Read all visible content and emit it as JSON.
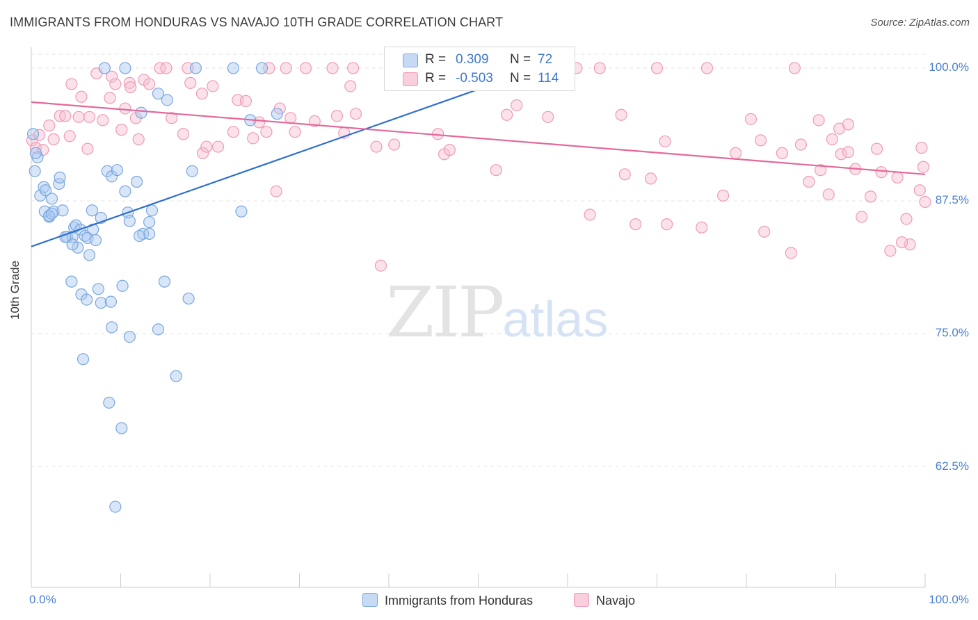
{
  "title": "IMMIGRANTS FROM HONDURAS VS NAVAJO 10TH GRADE CORRELATION CHART",
  "source": "Source: ZipAtlas.com",
  "watermark": {
    "main": "ZIP",
    "sub": "atlas"
  },
  "colors": {
    "blue": "#7aa7e0",
    "blue_fill": "#a9c7ef",
    "blue_line": "#2e6fcf",
    "pink": "#ef9ab6",
    "pink_fill": "#f6bfd1",
    "pink_line": "#e5679a",
    "tick_text": "#4a7fd0"
  },
  "stats": [
    {
      "r_label": "R =",
      "r_value": "0.309",
      "n_label": "N =",
      "n_value": "72"
    },
    {
      "r_label": "R =",
      "r_value": "-0.503",
      "n_label": "N =",
      "n_value": "114"
    }
  ],
  "chart_data": {
    "type": "scatter",
    "title": "IMMIGRANTS FROM HONDURAS VS NAVAJO 10TH GRADE CORRELATION CHART",
    "xlabel": "",
    "ylabel": "10th Grade",
    "xlim": [
      0,
      100
    ],
    "ylim": [
      50,
      101
    ],
    "x_tick_labels": [
      "0.0%",
      "100.0%"
    ],
    "y_ticks": [
      62.5,
      75.0,
      87.5,
      100.0
    ],
    "y_tick_labels": [
      "62.5%",
      "75.0%",
      "87.5%",
      "100.0%"
    ],
    "grid": true,
    "legend_position": "bottom-center",
    "series": [
      {
        "name": "Immigrants from Honduras",
        "color": "#7aa7e0",
        "trend": {
          "x": [
            0,
            50
          ],
          "y": [
            83.2,
            98.0
          ]
        },
        "points": [
          [
            0.2,
            93.8
          ],
          [
            0.4,
            90.3
          ],
          [
            0.7,
            91.6
          ],
          [
            1.0,
            88.0
          ],
          [
            1.4,
            88.8
          ],
          [
            1.6,
            88.5
          ],
          [
            2.0,
            86.0
          ],
          [
            2.5,
            86.5
          ],
          [
            3.1,
            89.1
          ],
          [
            3.2,
            89.7
          ],
          [
            3.5,
            86.6
          ],
          [
            4.0,
            84.1
          ],
          [
            4.6,
            84.1
          ],
          [
            4.8,
            85.0
          ],
          [
            5.0,
            85.2
          ],
          [
            5.2,
            83.1
          ],
          [
            5.5,
            84.8
          ],
          [
            6.0,
            84.2
          ],
          [
            6.3,
            84.0
          ],
          [
            6.8,
            86.6
          ],
          [
            6.5,
            82.4
          ],
          [
            7.2,
            83.8
          ],
          [
            7.8,
            85.9
          ],
          [
            8.5,
            90.3
          ],
          [
            9.0,
            89.8
          ],
          [
            9.6,
            90.4
          ],
          [
            10.5,
            88.4
          ],
          [
            10.8,
            86.4
          ],
          [
            11.0,
            85.6
          ],
          [
            11.8,
            89.3
          ],
          [
            12.5,
            84.4
          ],
          [
            13.2,
            84.4
          ],
          [
            13.5,
            86.6
          ],
          [
            14.2,
            97.6
          ],
          [
            15.2,
            97.0
          ],
          [
            18.0,
            90.3
          ],
          [
            18.4,
            100.0
          ],
          [
            22.6,
            100.0
          ],
          [
            23.5,
            86.5
          ],
          [
            24.5,
            95.1
          ],
          [
            25.8,
            100.0
          ],
          [
            27.5,
            95.7
          ],
          [
            4.5,
            79.9
          ],
          [
            5.6,
            78.7
          ],
          [
            6.2,
            78.2
          ],
          [
            7.5,
            79.2
          ],
          [
            7.8,
            77.9
          ],
          [
            8.9,
            78.0
          ],
          [
            10.2,
            79.5
          ],
          [
            9.0,
            75.6
          ],
          [
            11.0,
            74.7
          ],
          [
            14.2,
            75.4
          ],
          [
            14.9,
            79.9
          ],
          [
            17.6,
            78.3
          ],
          [
            5.8,
            72.6
          ],
          [
            16.2,
            71.0
          ],
          [
            8.7,
            68.5
          ],
          [
            10.1,
            66.1
          ],
          [
            9.4,
            58.7
          ],
          [
            1.5,
            86.5
          ],
          [
            2.0,
            86.1
          ],
          [
            2.3,
            86.3
          ],
          [
            12.3,
            95.8
          ],
          [
            8.2,
            100.0
          ],
          [
            10.5,
            100.0
          ],
          [
            3.8,
            84.1
          ],
          [
            6.9,
            84.8
          ],
          [
            4.6,
            83.4
          ],
          [
            12.1,
            84.2
          ],
          [
            13.2,
            85.5
          ],
          [
            0.5,
            92.0
          ],
          [
            2.3,
            87.7
          ]
        ]
      },
      {
        "name": "Navajo",
        "color": "#ef9ab6",
        "trend": {
          "x": [
            0,
            100
          ],
          "y": [
            96.8,
            90.0
          ]
        },
        "points": [
          [
            0.1,
            93.2
          ],
          [
            0.5,
            92.5
          ],
          [
            0.9,
            93.7
          ],
          [
            1.3,
            92.3
          ],
          [
            2.0,
            94.6
          ],
          [
            2.5,
            93.3
          ],
          [
            3.2,
            95.5
          ],
          [
            3.8,
            95.5
          ],
          [
            4.3,
            93.6
          ],
          [
            4.5,
            98.5
          ],
          [
            5.3,
            95.4
          ],
          [
            5.6,
            97.3
          ],
          [
            6.3,
            92.4
          ],
          [
            6.5,
            95.4
          ],
          [
            7.3,
            99.5
          ],
          [
            8.0,
            95.1
          ],
          [
            8.8,
            97.2
          ],
          [
            9.0,
            99.2
          ],
          [
            9.4,
            98.5
          ],
          [
            10.1,
            94.2
          ],
          [
            10.5,
            96.2
          ],
          [
            11.0,
            98.6
          ],
          [
            11.1,
            98.2
          ],
          [
            11.7,
            95.3
          ],
          [
            12.0,
            93.3
          ],
          [
            12.6,
            98.9
          ],
          [
            13.2,
            98.5
          ],
          [
            14.4,
            100.0
          ],
          [
            15.1,
            100.0
          ],
          [
            15.7,
            95.3
          ],
          [
            17.0,
            93.8
          ],
          [
            17.5,
            100.0
          ],
          [
            17.8,
            98.6
          ],
          [
            19.1,
            97.6
          ],
          [
            19.2,
            92.0
          ],
          [
            19.6,
            92.6
          ],
          [
            20.3,
            98.3
          ],
          [
            20.9,
            92.6
          ],
          [
            22.6,
            94.0
          ],
          [
            23.1,
            97.0
          ],
          [
            24.0,
            96.9
          ],
          [
            24.8,
            93.4
          ],
          [
            25.5,
            94.9
          ],
          [
            26.3,
            94.0
          ],
          [
            26.6,
            100.0
          ],
          [
            27.4,
            88.4
          ],
          [
            27.8,
            96.2
          ],
          [
            28.5,
            100.0
          ],
          [
            29.0,
            95.3
          ],
          [
            29.5,
            94.0
          ],
          [
            30.7,
            100.0
          ],
          [
            31.7,
            95.0
          ],
          [
            33.7,
            100.0
          ],
          [
            34.2,
            95.5
          ],
          [
            35.0,
            93.9
          ],
          [
            35.7,
            98.3
          ],
          [
            36.3,
            95.7
          ],
          [
            36.0,
            100.0
          ],
          [
            38.6,
            92.6
          ],
          [
            39.1,
            81.4
          ],
          [
            40.6,
            92.8
          ],
          [
            43.1,
            100.0
          ],
          [
            45.5,
            93.8
          ],
          [
            46.2,
            91.9
          ],
          [
            46.8,
            92.3
          ],
          [
            49.3,
            100.0
          ],
          [
            52.0,
            90.4
          ],
          [
            53.2,
            95.6
          ],
          [
            53.5,
            100.0
          ],
          [
            54.3,
            96.5
          ],
          [
            57.8,
            95.4
          ],
          [
            59.1,
            100.0
          ],
          [
            61.0,
            100.0
          ],
          [
            62.5,
            86.2
          ],
          [
            63.6,
            100.0
          ],
          [
            66.0,
            95.6
          ],
          [
            66.4,
            90.0
          ],
          [
            67.6,
            85.3
          ],
          [
            69.3,
            89.6
          ],
          [
            70.0,
            100.0
          ],
          [
            70.9,
            93.1
          ],
          [
            71.1,
            85.3
          ],
          [
            75.0,
            85.0
          ],
          [
            75.6,
            100.0
          ],
          [
            77.4,
            88.0
          ],
          [
            78.8,
            92.0
          ],
          [
            80.5,
            95.2
          ],
          [
            81.6,
            93.2
          ],
          [
            82.0,
            84.6
          ],
          [
            84.0,
            92.0
          ],
          [
            85.0,
            82.6
          ],
          [
            85.4,
            100.0
          ],
          [
            86.1,
            92.8
          ],
          [
            87.0,
            89.3
          ],
          [
            88.1,
            95.1
          ],
          [
            88.3,
            90.4
          ],
          [
            89.2,
            88.1
          ],
          [
            89.6,
            93.3
          ],
          [
            90.4,
            94.3
          ],
          [
            90.6,
            91.9
          ],
          [
            91.4,
            94.7
          ],
          [
            91.4,
            92.1
          ],
          [
            92.2,
            90.5
          ],
          [
            92.9,
            86.0
          ],
          [
            93.9,
            87.9
          ],
          [
            94.6,
            92.4
          ],
          [
            95.1,
            90.2
          ],
          [
            96.1,
            82.8
          ],
          [
            96.9,
            89.7
          ],
          [
            97.9,
            85.8
          ],
          [
            99.6,
            92.5
          ],
          [
            99.8,
            90.7
          ],
          [
            100.0,
            87.4
          ],
          [
            98.3,
            83.4
          ],
          [
            97.4,
            83.6
          ],
          [
            99.4,
            88.5
          ]
        ]
      }
    ]
  },
  "legend": [
    {
      "label": "Immigrants from Honduras"
    },
    {
      "label": "Navajo"
    }
  ]
}
